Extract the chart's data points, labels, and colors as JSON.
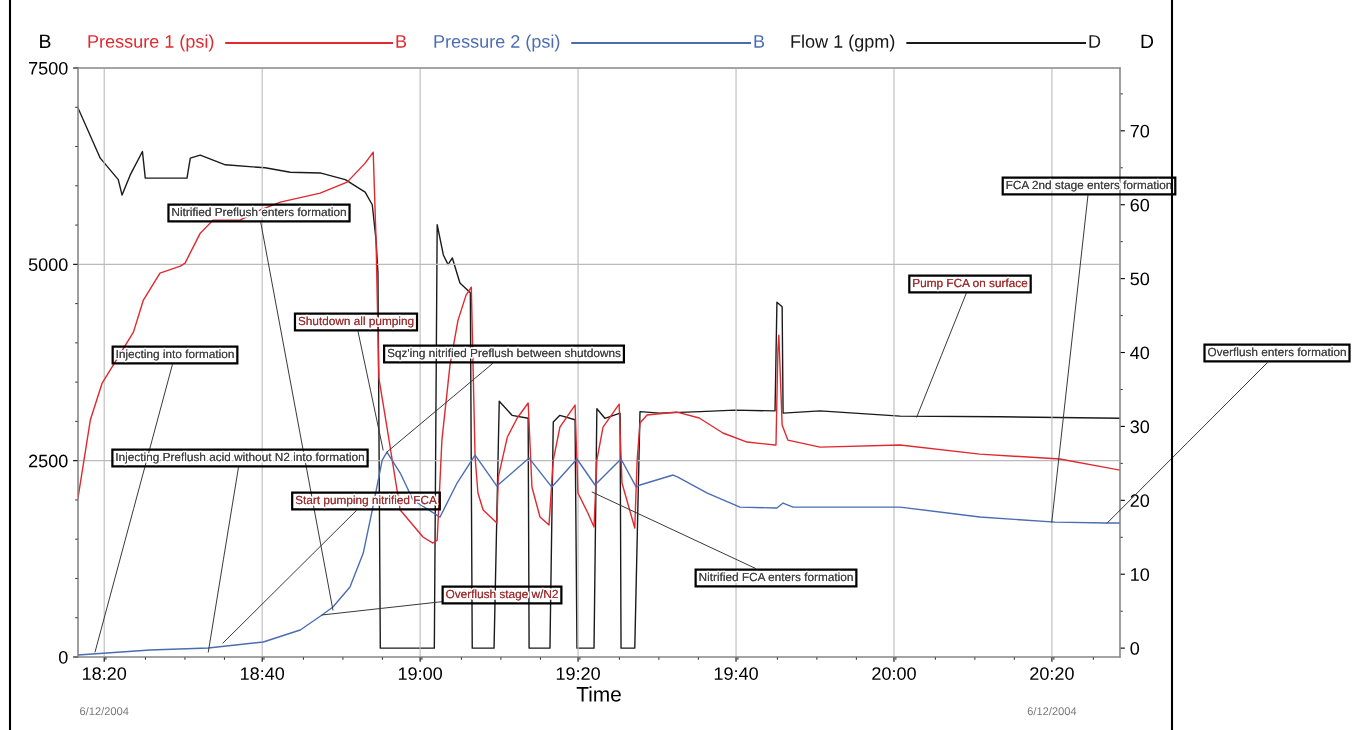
{
  "chart_data": {
    "type": "line",
    "xlabel": "Time",
    "ylabel": "B",
    "y2label": "D",
    "xlim": [
      18.278,
      20.477
    ],
    "ylim": [
      0,
      7500
    ],
    "y2lim": [
      -1.2,
      78.5
    ],
    "xticks": [
      {
        "value": 18.3333,
        "label": "18:20"
      },
      {
        "value": 18.6667,
        "label": "18:40"
      },
      {
        "value": 19,
        "label": "19:00"
      },
      {
        "value": 19.3333,
        "label": "19:20"
      },
      {
        "value": 19.6667,
        "label": "19:40"
      },
      {
        "value": 20,
        "label": "20:00"
      },
      {
        "value": 20.3333,
        "label": "20:20"
      }
    ],
    "yticks": [
      0,
      2500,
      5000,
      7500
    ],
    "y2ticks": [
      0,
      10,
      20,
      30,
      40,
      50,
      60,
      70
    ],
    "grid": true,
    "legend": "top",
    "series": [
      {
        "name": "Pressure 1 (psi)",
        "color": "#e0282e",
        "axis": "y",
        "x": [
          18.278,
          18.304,
          18.329,
          18.395,
          18.416,
          18.451,
          18.494,
          18.504,
          18.536,
          18.563,
          18.62,
          18.662,
          18.705,
          18.789,
          18.846,
          18.884,
          18.901,
          18.907,
          18.913,
          18.93,
          18.958,
          19.006,
          19.027,
          19.036,
          19.046,
          19.063,
          19.08,
          19.097,
          19.108,
          19.116,
          19.122,
          19.133,
          19.162,
          19.165,
          19.184,
          19.205,
          19.228,
          19.236,
          19.253,
          19.272,
          19.281,
          19.295,
          19.327,
          19.333,
          19.354,
          19.367,
          19.373,
          19.386,
          19.42,
          19.426,
          19.453,
          19.458,
          19.464,
          19.479,
          19.542,
          19.589,
          19.639,
          19.69,
          19.749,
          19.751,
          19.755,
          19.757,
          19.764,
          19.776,
          19.844,
          20.013,
          20.181,
          20.35,
          20.477
        ],
        "values": [
          2024,
          3017,
          3488,
          4137,
          4545,
          4888,
          4977,
          5016,
          5397,
          5563,
          5563,
          5690,
          5792,
          5907,
          6047,
          6289,
          6429,
          5308,
          3552,
          2928,
          1871,
          1528,
          1451,
          1489,
          2762,
          3717,
          4290,
          4608,
          4710,
          2546,
          2088,
          1871,
          1706,
          2291,
          2801,
          3043,
          3234,
          2164,
          1782,
          1680,
          2508,
          2928,
          3208,
          2088,
          1833,
          1655,
          2508,
          2928,
          3221,
          2215,
          1642,
          2508,
          2979,
          3081,
          3119,
          3043,
          2852,
          2737,
          2699,
          2699,
          3900,
          4099,
          2953,
          2762,
          2673,
          2699,
          2584,
          2521,
          2380
        ]
      },
      {
        "name": "Pressure 2 (psi)",
        "color": "#4a6cb3",
        "axis": "y",
        "x": [
          18.278,
          18.43,
          18.553,
          18.669,
          18.747,
          18.793,
          18.816,
          18.852,
          18.88,
          18.899,
          18.92,
          18.93,
          18.958,
          18.985,
          19.042,
          19.078,
          19.116,
          19.162,
          19.23,
          19.278,
          19.331,
          19.369,
          19.424,
          19.456,
          19.464,
          19.534,
          19.544,
          19.606,
          19.675,
          19.753,
          19.766,
          19.787,
          19.886,
          20.013,
          20.181,
          20.34,
          20.449,
          20.477
        ],
        "values": [
          25,
          89,
          115,
          191,
          344,
          535,
          636,
          891,
          1324,
          1871,
          2508,
          2610,
          2342,
          1999,
          1782,
          2215,
          2571,
          2177,
          2533,
          2164,
          2521,
          2190,
          2521,
          2164,
          2190,
          2317,
          2291,
          2088,
          1909,
          1897,
          1960,
          1909,
          1909,
          1909,
          1782,
          1718,
          1706,
          1706
        ]
      },
      {
        "name": "Flow 1 (gpm)",
        "color": "#1a1a1a",
        "axis": "y2",
        "x": [
          18.278,
          18.325,
          18.363,
          18.371,
          18.388,
          18.414,
          18.42,
          18.462,
          18.508,
          18.515,
          18.536,
          18.589,
          18.673,
          18.726,
          18.789,
          18.842,
          18.884,
          18.899,
          18.907,
          18.911,
          18.916,
          19.03,
          19.036,
          19.049,
          19.059,
          19.068,
          19.084,
          19.106,
          19.11,
          19.156,
          19.167,
          19.194,
          19.228,
          19.23,
          19.274,
          19.281,
          19.295,
          19.327,
          19.331,
          19.367,
          19.373,
          19.39,
          19.422,
          19.424,
          19.453,
          19.464,
          19.506,
          19.591,
          19.664,
          19.749,
          19.753,
          19.764,
          19.766,
          19.844,
          20.013,
          20.224,
          20.477
        ],
        "values": [
          73.1,
          66.3,
          63.4,
          61.3,
          64.0,
          67.2,
          63.6,
          63.6,
          63.6,
          66.3,
          66.7,
          65.4,
          65.0,
          64.4,
          64.3,
          63.4,
          61.7,
          60.0,
          55.2,
          50.8,
          0,
          0,
          57.3,
          53.2,
          51.9,
          52.8,
          49.4,
          48.1,
          0,
          0,
          33.4,
          31.5,
          31.1,
          0,
          0,
          30.6,
          31.5,
          30.9,
          0,
          0,
          32.4,
          31.1,
          31.8,
          0,
          0,
          32.0,
          31.8,
          32.0,
          32.2,
          32.1,
          46.8,
          46.2,
          31.8,
          32.1,
          31.4,
          31.3,
          31.1
        ]
      }
    ],
    "annotations": [
      {
        "text": "Nitrified Preflush enters formation",
        "x": 18.816,
        "y": 598
      },
      {
        "text": "Injecting into formation",
        "x": 18.314,
        "y": 64
      },
      {
        "text": "Shutdown all pumping",
        "x": 18.922,
        "y": 2635
      },
      {
        "text": "Sqz'ing nitrified Preflush between shutdowns",
        "x": 18.93,
        "y": 2610
      },
      {
        "text": "Injecting Preflush acid without N2 into formation",
        "x": 18.553,
        "y": 64
      },
      {
        "text": "Start pumping nitrified FCA",
        "x": 18.584,
        "y": 178
      },
      {
        "text": "Overflush stage w/N2",
        "x": 18.793,
        "y": 535
      },
      {
        "text": "Nitrified FCA enters formation",
        "x": 19.363,
        "y": 2100
      },
      {
        "text": "Pump FCA on surface",
        "x": 20.048,
        "y": 3055
      },
      {
        "text": "FCA 2nd stage enters formation",
        "x": 20.333,
        "y": 1718
      },
      {
        "text": "Overflush enters formation",
        "x": 20.45,
        "y": 1706
      },
      "6/12/2004",
      "6/12/2004"
    ]
  }
}
